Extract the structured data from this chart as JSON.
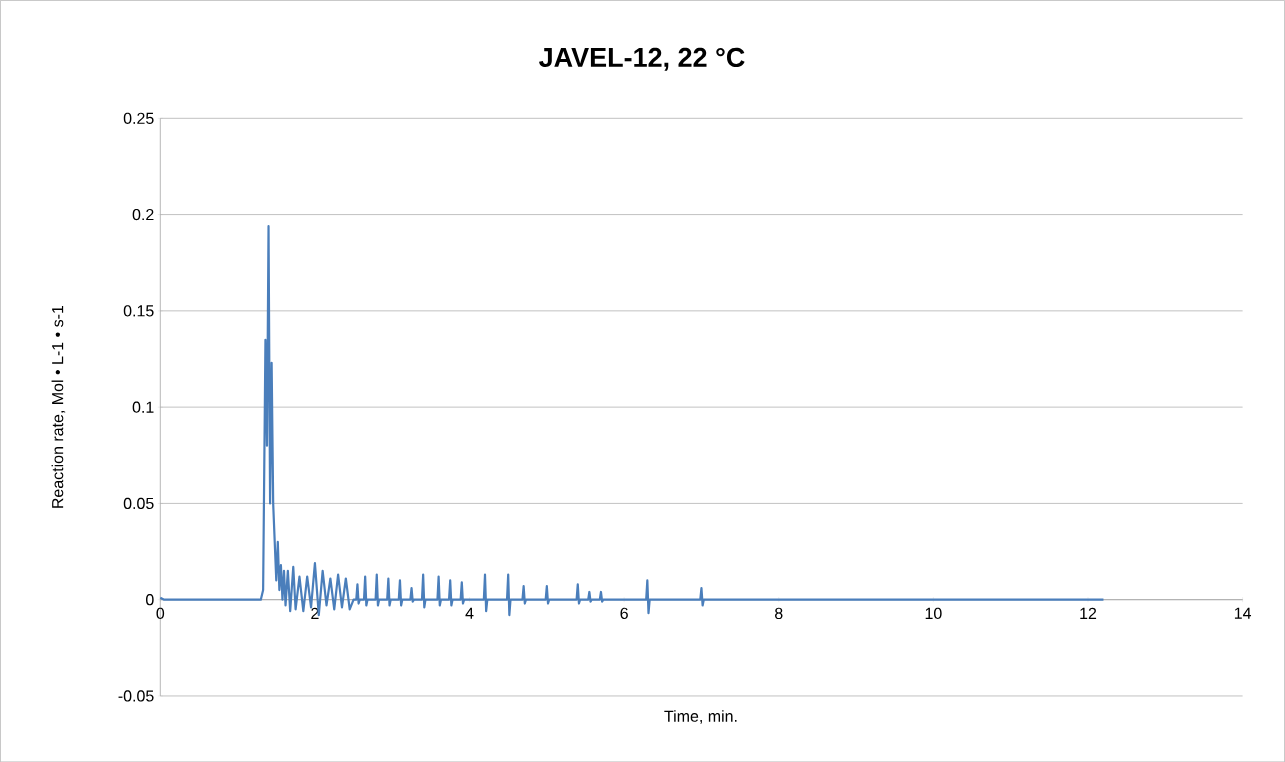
{
  "chart_data": {
    "type": "line",
    "title": "JAVEL-12,  22 °C",
    "xlabel": "Time, min.",
    "ylabel": "Reaction rate, Mol • L-1 • s-1",
    "xlim": [
      0,
      14
    ],
    "ylim": [
      -0.05,
      0.25
    ],
    "xticks": [
      0,
      2,
      4,
      6,
      8,
      10,
      12,
      14
    ],
    "yticks": [
      -0.05,
      0,
      0.05,
      0.1,
      0.15,
      0.2,
      0.25
    ],
    "grid": "y",
    "marker": "none",
    "line_style": "solid",
    "series": [
      {
        "color": "#4a7ebb",
        "x": [
          0,
          0.05,
          1.3,
          1.33,
          1.36,
          1.38,
          1.4,
          1.42,
          1.44,
          1.46,
          1.48,
          1.5,
          1.52,
          1.54,
          1.56,
          1.58,
          1.6,
          1.62,
          1.65,
          1.68,
          1.72,
          1.75,
          1.8,
          1.85,
          1.9,
          1.95,
          2.0,
          2.05,
          2.1,
          2.15,
          2.2,
          2.25,
          2.3,
          2.35,
          2.4,
          2.45,
          2.5,
          2.535,
          2.55,
          2.565,
          2.58,
          2.635,
          2.65,
          2.665,
          2.68,
          2.785,
          2.8,
          2.815,
          2.83,
          2.935,
          2.95,
          2.965,
          2.98,
          3.085,
          3.1,
          3.115,
          3.13,
          3.235,
          3.25,
          3.265,
          3.28,
          3.385,
          3.4,
          3.415,
          3.43,
          3.585,
          3.6,
          3.615,
          3.63,
          3.735,
          3.75,
          3.765,
          3.78,
          3.885,
          3.9,
          3.915,
          3.93,
          4.185,
          4.2,
          4.215,
          4.23,
          4.485,
          4.5,
          4.515,
          4.53,
          4.685,
          4.7,
          4.715,
          4.73,
          4.985,
          5.0,
          5.015,
          5.03,
          5.385,
          5.4,
          5.415,
          5.43,
          5.535,
          5.55,
          5.565,
          5.58,
          5.685,
          5.7,
          5.715,
          5.73,
          6.285,
          6.3,
          6.315,
          6.33,
          6.985,
          7.0,
          7.015,
          7.03,
          8,
          10,
          12.2
        ],
        "values": [
          0.001,
          0,
          0,
          0.005,
          0.135,
          0.08,
          0.194,
          0.05,
          0.123,
          0.05,
          0.03,
          0.01,
          0.03,
          0.005,
          0.018,
          0,
          0.015,
          -0.003,
          0.015,
          -0.006,
          0.017,
          -0.005,
          0.012,
          -0.006,
          0.012,
          -0.004,
          0.019,
          -0.008,
          0.015,
          -0.003,
          0.011,
          -0.005,
          0.013,
          -0.004,
          0.011,
          -0.005,
          0,
          0,
          0.008,
          -0.002,
          0,
          0,
          0.012,
          -0.003,
          0,
          0,
          0.013,
          -0.003,
          0,
          0,
          0.011,
          -0.003,
          0,
          0,
          0.01,
          -0.003,
          0,
          0,
          0.006,
          -0.001,
          0,
          0,
          0.013,
          -0.004,
          0,
          0,
          0.012,
          -0.003,
          0,
          0,
          0.01,
          -0.003,
          0,
          0,
          0.009,
          -0.002,
          0,
          0,
          0.013,
          -0.006,
          0,
          0,
          0.013,
          -0.008,
          0,
          0,
          0.007,
          -0.002,
          0,
          0,
          0.007,
          -0.002,
          0,
          0,
          0.008,
          -0.002,
          0,
          0,
          0.004,
          -0.001,
          0,
          0,
          0.004,
          -0.001,
          0,
          0,
          0.01,
          -0.007,
          0,
          0,
          0.006,
          -0.003,
          0,
          0,
          0,
          0
        ]
      }
    ]
  }
}
